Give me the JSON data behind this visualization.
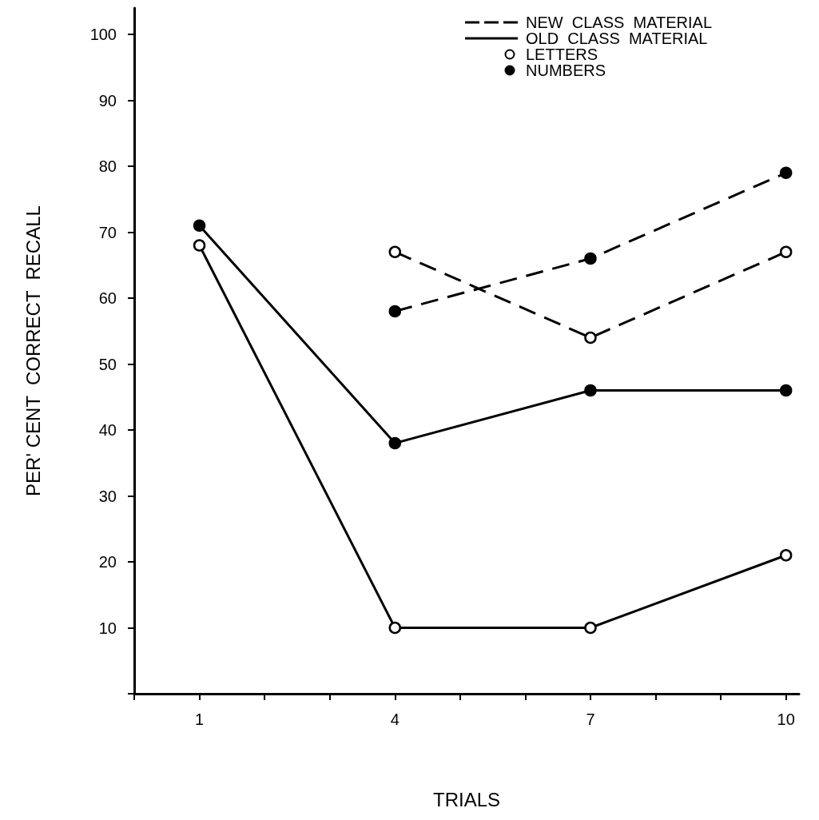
{
  "chart_data": {
    "type": "line",
    "xlabel": "TRIALS",
    "ylabel": "PER' CENT  CORRECT  RECALL",
    "x": [
      1,
      4,
      7,
      10
    ],
    "series": [
      {
        "color": "#000000",
        "line_style": "dashed",
        "marker": "open_circle",
        "x": [
          4,
          7,
          10
        ],
        "values": [
          67,
          54,
          67
        ]
      },
      {
        "color": "#000000",
        "line_style": "dashed",
        "marker": "circle",
        "x": [
          4,
          7,
          10
        ],
        "values": [
          58,
          66,
          79
        ]
      },
      {
        "color": "#000000",
        "line_style": "solid",
        "marker": "open_circle",
        "values": [
          68,
          10,
          10,
          21
        ]
      },
      {
        "color": "#000000",
        "line_style": "solid",
        "marker": "circle",
        "values": [
          71,
          38,
          46,
          46
        ]
      }
    ],
    "annotations": [
      "NEW  CLASS  MATERIAL",
      "OLD  CLASS  MATERIAL",
      "LETTERS",
      "NUMBERS"
    ],
    "grid": false,
    "xlim": [
      0,
      10.2
    ],
    "xticks": [
      {
        "value": 0,
        "label": null
      },
      1,
      {
        "value": 2,
        "label": null
      },
      {
        "value": 3,
        "label": null
      },
      4,
      {
        "value": 5,
        "label": null
      },
      {
        "value": 6,
        "label": null
      },
      7,
      {
        "value": 8,
        "label": null
      },
      {
        "value": 9,
        "label": null
      },
      10
    ],
    "ylim": [
      0,
      104
    ],
    "yticks": [
      {
        "value": 0,
        "label": null
      },
      10,
      20,
      30,
      40,
      50,
      60,
      70,
      80,
      90,
      100
    ]
  }
}
